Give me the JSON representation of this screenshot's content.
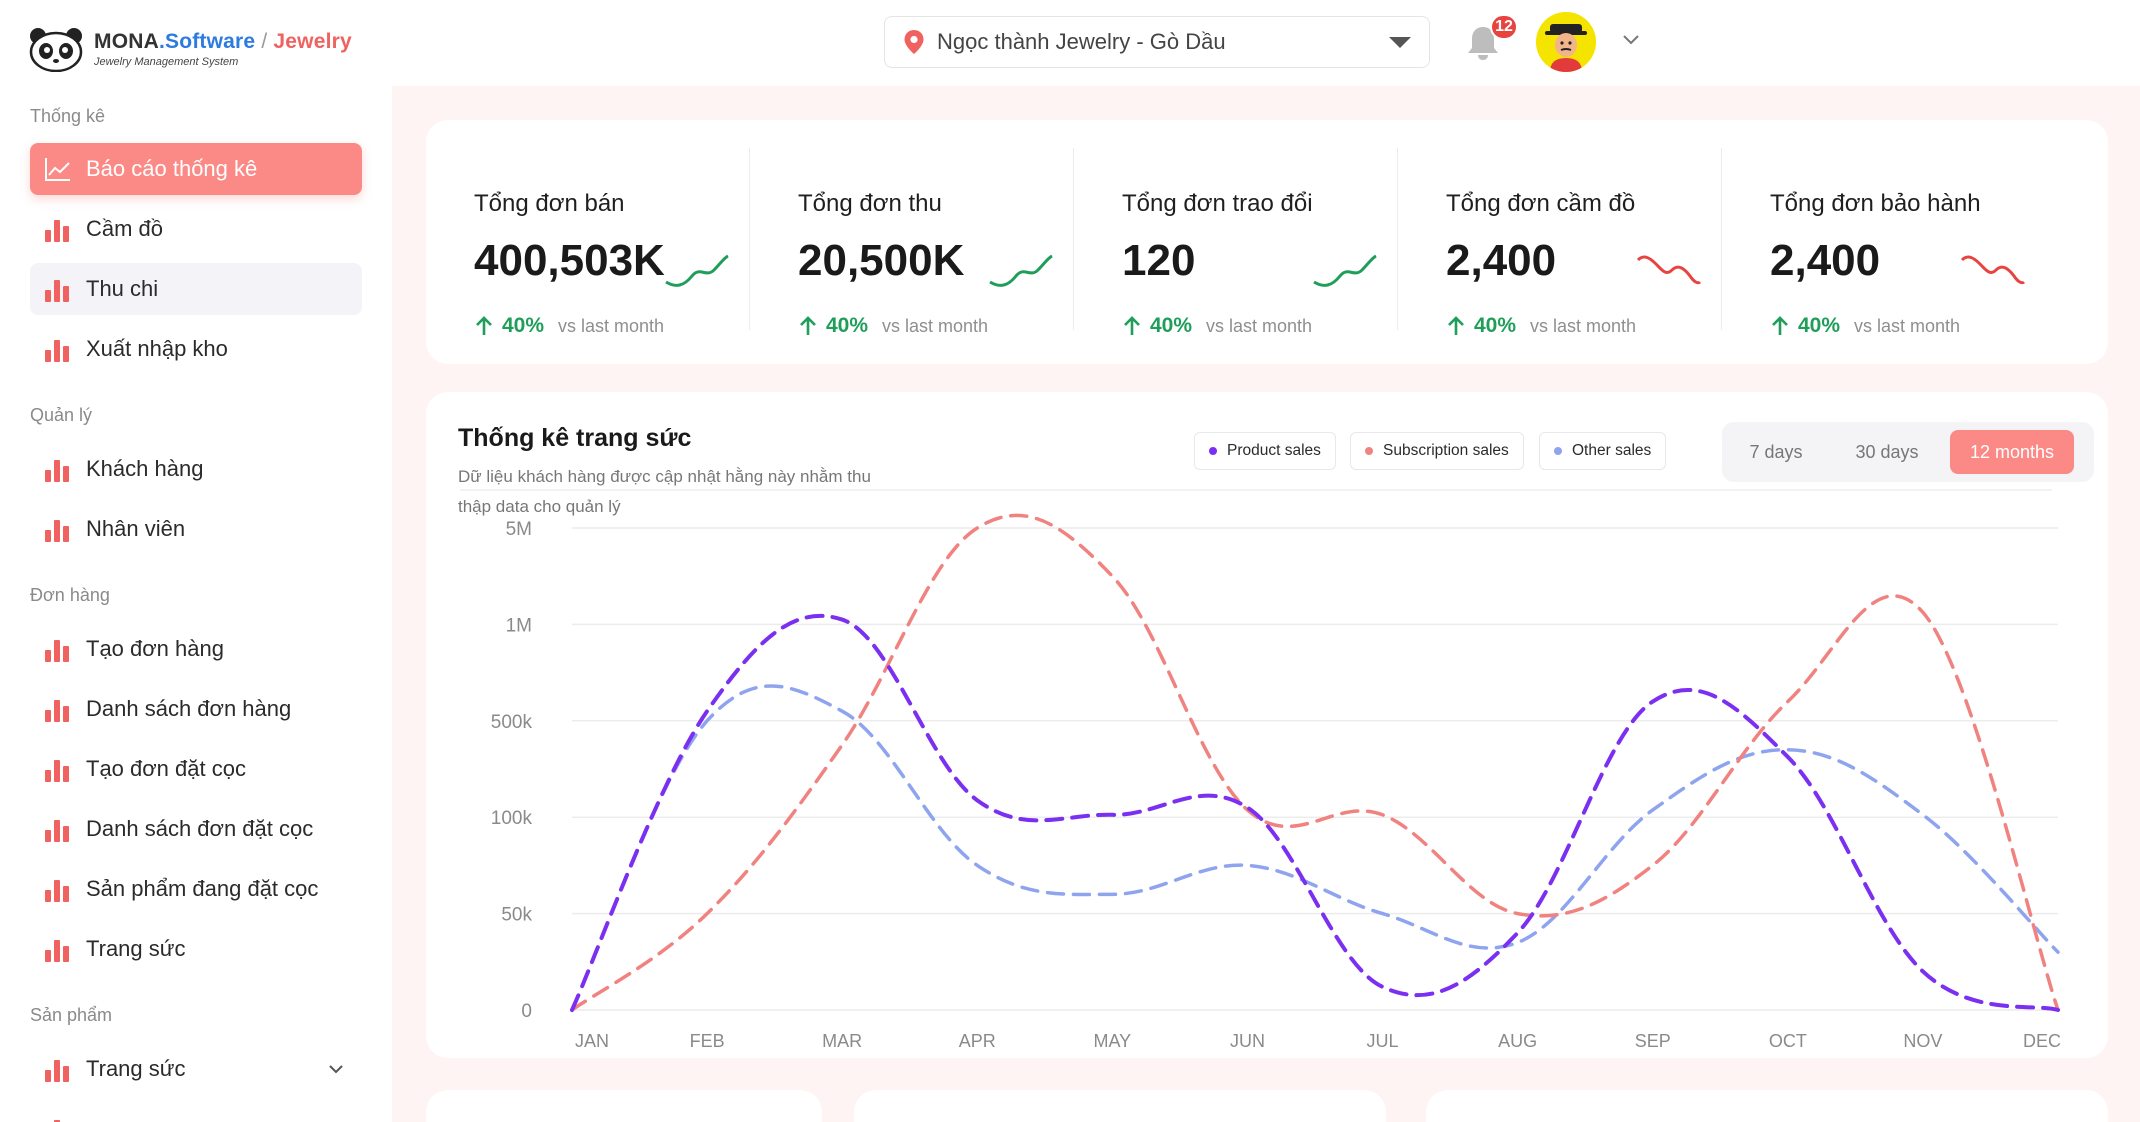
{
  "header": {
    "brand": {
      "name_part1": "MONA",
      "name_part2": ".Software",
      "separator": " / ",
      "name_part3": "Jewelry",
      "tagline": "Jewelry Management System"
    },
    "store_selector": {
      "value": "Ngọc thành Jewelry - Gò Dầu",
      "icon": "map-pin-icon"
    },
    "notifications": {
      "count": "12",
      "icon": "bell-icon"
    },
    "user_menu": {
      "icon": "chevron-down-icon"
    }
  },
  "sidebar": {
    "sections": [
      {
        "label": "Thống kê"
      },
      {
        "label": "Quản lý"
      },
      {
        "label": "Đơn hàng"
      },
      {
        "label": "Sản phẩm"
      }
    ],
    "items": [
      {
        "label": "Báo cáo thống kê",
        "icon": "line-chart-icon"
      },
      {
        "label": "Cầm đồ",
        "icon": "bar-chart-icon"
      },
      {
        "label": "Thu chi",
        "icon": "bar-chart-icon"
      },
      {
        "label": "Xuất nhập kho",
        "icon": "bar-chart-icon"
      },
      {
        "label": "Khách hàng",
        "icon": "bar-chart-icon"
      },
      {
        "label": "Nhân viên",
        "icon": "bar-chart-icon"
      },
      {
        "label": "Tạo đơn hàng",
        "icon": "bar-chart-icon"
      },
      {
        "label": "Danh sách đơn hàng",
        "icon": "bar-chart-icon"
      },
      {
        "label": "Tạo đơn đặt cọc",
        "icon": "bar-chart-icon"
      },
      {
        "label": "Danh sách đơn đặt cọc",
        "icon": "bar-chart-icon"
      },
      {
        "label": "Sản phẩm đang đặt cọc",
        "icon": "bar-chart-icon"
      },
      {
        "label": "Trang sức",
        "icon": "bar-chart-icon"
      },
      {
        "label": "Trang sức",
        "icon": "bar-chart-icon"
      }
    ]
  },
  "stats": [
    {
      "label": "Tổng đơn bán",
      "value": "400,503K",
      "change": "40%",
      "compare": "vs last month",
      "trend": "up"
    },
    {
      "label": "Tổng đơn thu",
      "value": "20,500K",
      "change": "40%",
      "compare": "vs last month",
      "trend": "up"
    },
    {
      "label": "Tổng đơn trao đổi",
      "value": "120",
      "change": "40%",
      "compare": "vs last month",
      "trend": "up"
    },
    {
      "label": "Tổng đơn cầm đồ",
      "value": "2,400",
      "change": "40%",
      "compare": "vs last month",
      "trend": "down"
    },
    {
      "label": "Tổng đơn bảo hành",
      "value": "2,400",
      "change": "40%",
      "compare": "vs last month",
      "trend": "down"
    }
  ],
  "colors": {
    "accent": "#fb8a86",
    "up": "#1f9e5a",
    "down": "#e8433f",
    "product": "#7b2ff0",
    "subscription": "#f0827f",
    "other": "#8fa4ef"
  },
  "chart_section": {
    "title": "Thống kê trang sức",
    "description": "Dữ liệu khách hàng được cập nhật hằng này nhằm thu thập data cho quản lý",
    "range_options": [
      "7 days",
      "30 days",
      "12 months"
    ],
    "selected_range": "12 months"
  },
  "chart_data": {
    "type": "line",
    "line_style": "dashed, smoothed",
    "grid": "horizontal",
    "legend_position": "top-right",
    "x": [
      "JAN",
      "FEB",
      "MAR",
      "APR",
      "MAY",
      "JUN",
      "JUL",
      "AUG",
      "SEP",
      "OCT",
      "NOV",
      "DEC"
    ],
    "y_ticks": [
      "0",
      "50k",
      "100k",
      "500k",
      "1M",
      "5M"
    ],
    "y_scale": "categorical ticks (0, 50k, 100k, 500k, 1M, 5M), evenly spaced",
    "series": [
      {
        "name": "Product sales",
        "color": "#7b2ff0",
        "values": [
          "0",
          "550k",
          "1.2M",
          "170k",
          "110k",
          "140k",
          "12k",
          "40k",
          "600k",
          "350k",
          "20k",
          "0"
        ]
      },
      {
        "name": "Subscription sales",
        "color": "#f0827f",
        "values": [
          "0",
          "50k",
          "400k",
          "5M",
          "3M",
          "130k",
          "110k",
          "50k",
          "75k",
          "600k",
          "1.5M",
          "0"
        ]
      },
      {
        "name": "Other sales",
        "color": "#8fa4ef",
        "values": [
          "0",
          "500k",
          "550k",
          "75k",
          "60k",
          "75k",
          "50k",
          "35k",
          "130k",
          "380k",
          "110k",
          "30k"
        ]
      }
    ]
  }
}
